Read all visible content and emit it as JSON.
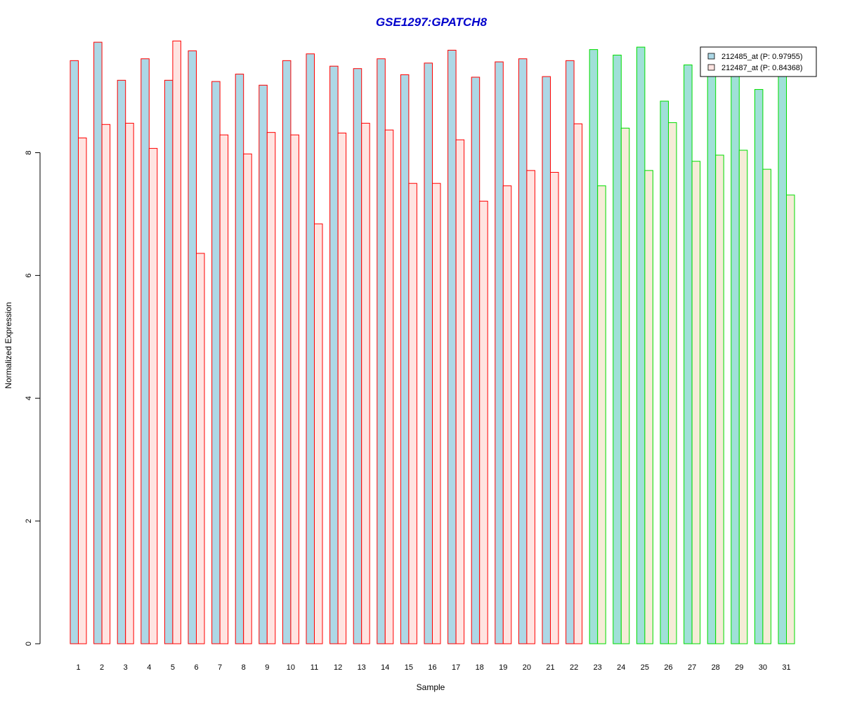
{
  "chart_data": {
    "type": "bar",
    "title": "GSE1297:GPATCH8",
    "xlabel": "Sample",
    "ylabel": "Normalized Expression",
    "ylim": [
      0,
      9.8
    ],
    "yticks": [
      "0",
      "2",
      "4",
      "6",
      "8"
    ],
    "categories": [
      "1",
      "2",
      "3",
      "4",
      "5",
      "6",
      "7",
      "8",
      "9",
      "10",
      "11",
      "12",
      "13",
      "14",
      "15",
      "16",
      "17",
      "18",
      "19",
      "20",
      "21",
      "22",
      "23",
      "24",
      "25",
      "26",
      "27",
      "28",
      "29",
      "30",
      "31"
    ],
    "series": [
      {
        "name": "212485_at (P: 0.97955)",
        "values": [
          9.5,
          9.8,
          9.18,
          9.53,
          9.18,
          9.66,
          9.16,
          9.28,
          9.1,
          9.5,
          9.61,
          9.41,
          9.37,
          9.53,
          9.27,
          9.46,
          9.67,
          9.23,
          9.48,
          9.53,
          9.24,
          9.5,
          9.68,
          9.59,
          9.72,
          8.84,
          9.43,
          9.3,
          9.3,
          9.03,
          9.3
        ]
      },
      {
        "name": "212487_at (P: 0.84368)",
        "values": [
          8.24,
          8.46,
          8.48,
          8.07,
          9.82,
          6.36,
          8.29,
          7.98,
          8.33,
          8.29,
          6.84,
          8.32,
          8.48,
          8.37,
          7.5,
          7.5,
          8.21,
          7.21,
          7.46,
          7.71,
          7.68,
          8.47,
          7.46,
          8.4,
          7.71,
          8.49,
          7.86,
          7.96,
          8.04,
          7.73,
          7.31
        ]
      }
    ],
    "groups": [
      {
        "samples": "1-22",
        "border": "#ff0000"
      },
      {
        "samples": "23-31",
        "border": "#00dd00"
      }
    ],
    "legend_position": "top-right",
    "grid": false
  },
  "colors": {
    "title": "#0000cc",
    "group1_border": "#ff0000",
    "group2_border": "#00dd00",
    "group1_fill_a": "#add8e6",
    "group1_fill_b": "#ffe4e1",
    "group2_fill_a": "#a0e0d8",
    "group2_fill_b": "#f5ecd7",
    "legend_fill_a": "#add8e6",
    "legend_fill_b": "#ffe4e1"
  }
}
